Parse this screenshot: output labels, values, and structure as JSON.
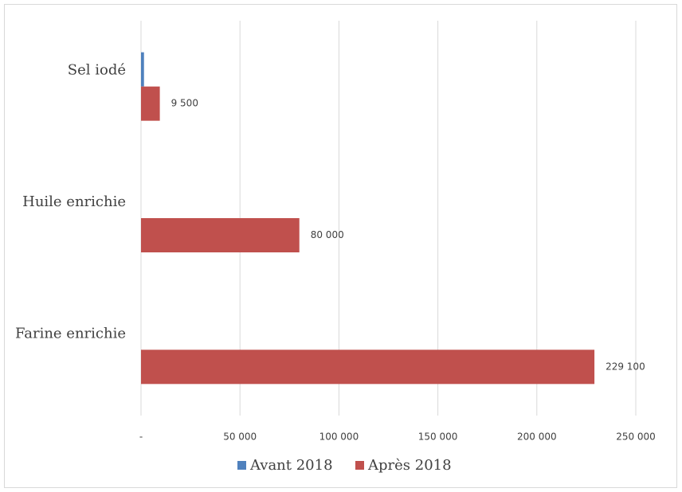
{
  "chart_data": {
    "type": "bar",
    "orientation": "horizontal",
    "categories": [
      "Sel iodé",
      "Huile enrichie",
      "Farine enrichie"
    ],
    "series": [
      {
        "name": "Avant 2018",
        "color": "#4f81bd",
        "values": [
          1500,
          0,
          0
        ],
        "labels": [
          "",
          "",
          ""
        ]
      },
      {
        "name": "Après 2018",
        "color": "#c0504d",
        "values": [
          9500,
          80000,
          229100
        ],
        "labels": [
          "9 500",
          "80 000",
          "229 100"
        ]
      }
    ],
    "xlim": [
      0,
      250000
    ],
    "xticks": [
      {
        "value": 0,
        "label": "-"
      },
      {
        "value": 50000,
        "label": "50 000"
      },
      {
        "value": 100000,
        "label": "100 000"
      },
      {
        "value": 150000,
        "label": "150 000"
      },
      {
        "value": 200000,
        "label": "200 000"
      },
      {
        "value": 250000,
        "label": "250 000"
      }
    ],
    "grid": true,
    "legend_position": "bottom"
  }
}
